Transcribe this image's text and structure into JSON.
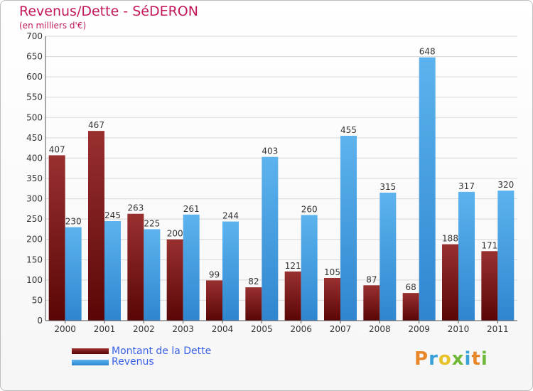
{
  "header": {
    "title": "Revenus/Dette - SéDERON",
    "subtitle": "(en milliers d'€)"
  },
  "legend": [
    {
      "label": "Montant de la Dette",
      "color": "#7a1010"
    },
    {
      "label": "Revenus",
      "color": "#4aa3e6"
    }
  ],
  "logo": {
    "text": "Proxiti",
    "letters": [
      {
        "ch": "P",
        "color": "#e8872a"
      },
      {
        "ch": "r",
        "color": "#3aa0d8"
      },
      {
        "ch": "o",
        "color": "#e8c22a"
      },
      {
        "ch": "x",
        "color": "#6fb83a"
      },
      {
        "ch": "i",
        "color": "#3aa0d8"
      },
      {
        "ch": "t",
        "color": "#e8872a"
      },
      {
        "ch": "i",
        "color": "#6fb83a"
      }
    ]
  },
  "chart_data": {
    "type": "bar",
    "categories": [
      "2000",
      "2001",
      "2002",
      "2003",
      "2004",
      "2005",
      "2006",
      "2007",
      "2008",
      "2009",
      "2010",
      "2011"
    ],
    "series": [
      {
        "name": "Montant de la Dette",
        "color": "#7a1010",
        "values": [
          407,
          467,
          263,
          200,
          99,
          82,
          121,
          105,
          87,
          68,
          188,
          171
        ]
      },
      {
        "name": "Revenus",
        "color": "#4aa3e6",
        "values": [
          230,
          245,
          225,
          261,
          244,
          403,
          260,
          455,
          315,
          648,
          317,
          320
        ]
      }
    ],
    "title": "Revenus/Dette - SéDERON",
    "ylabel": "(en milliers d'€)",
    "ylim": [
      0,
      700
    ],
    "yticks": [
      "0",
      "50",
      "100",
      "150",
      "200",
      "250",
      "300",
      "350",
      "400",
      "450",
      "500",
      "550",
      "600",
      "650",
      "700"
    ],
    "grid": true,
    "legend_position": "bottom-left"
  }
}
